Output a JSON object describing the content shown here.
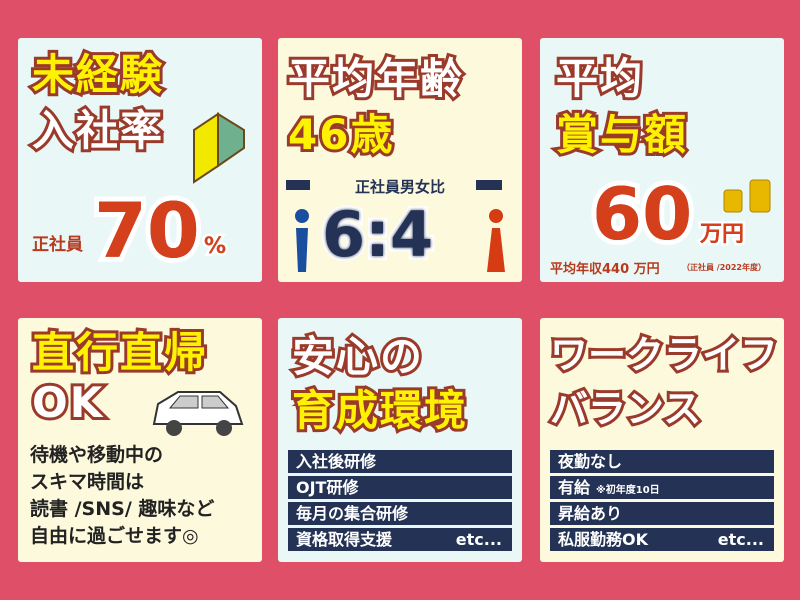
{
  "panels": {
    "inexperienced": {
      "title1": "未経験",
      "title2": "入社率",
      "label": "正社員",
      "value": "70",
      "unit": "%",
      "icon": "beginner-mark-icon"
    },
    "age": {
      "title1": "平均年齢",
      "title2": "46歳",
      "ratio_label": "正社員男女比",
      "male": "6",
      "sep": ":",
      "female": "4",
      "colors": {
        "male": "#1a4fa0",
        "female": "#d63c14"
      }
    },
    "bonus": {
      "title1": "平均",
      "title2": "賞与額",
      "value": "60",
      "unit": "万円",
      "note": "平均年収440 万円",
      "note2": "（正社員 /2022年度）",
      "icon": "coins-icon"
    },
    "direct": {
      "title1": "直行直帰",
      "title2": "OK",
      "lines": [
        "待機や移動中の",
        "スキマ時間は",
        "読書 /SNS/ 趣味など",
        "自由に過ごせます◎"
      ],
      "icon": "car-icon"
    },
    "training": {
      "title1": "安心の",
      "title2": "育成環境",
      "items": [
        "入社後研修",
        "OJT研修",
        "毎月の集合研修",
        "資格取得支援"
      ],
      "etc": "etc..."
    },
    "worklife": {
      "title1": "ワークライフ",
      "title2": "バランス",
      "items": [
        "夜勤なし",
        "有給",
        "昇給あり",
        "私服勤務OK"
      ],
      "item_note": "※初年度10日",
      "etc": "etc..."
    }
  },
  "colors": {
    "background": "#e04f68",
    "navy": "#243355",
    "accent": "#d3401b",
    "yellow": "#fff200"
  }
}
